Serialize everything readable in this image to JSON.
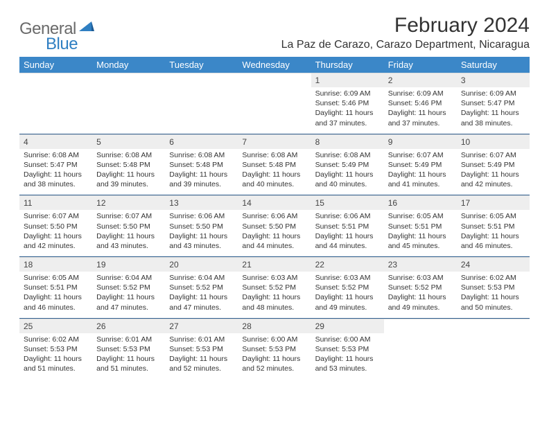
{
  "logo": {
    "text1": "General",
    "text2": "Blue"
  },
  "title": "February 2024",
  "location": "La Paz de Carazo, Carazo Department, Nicaragua",
  "colors": {
    "header_bg": "#3b87c8",
    "header_text": "#ffffff",
    "daynum_bg": "#eeeeee",
    "sep_line": "#2f5f8f",
    "logo_gray": "#6a6a6a",
    "logo_blue": "#2f7fc2"
  },
  "weekdays": [
    "Sunday",
    "Monday",
    "Tuesday",
    "Wednesday",
    "Thursday",
    "Friday",
    "Saturday"
  ],
  "weeks": [
    {
      "nums": [
        "",
        "",
        "",
        "",
        "1",
        "2",
        "3"
      ],
      "cells": [
        null,
        null,
        null,
        null,
        {
          "sunrise": "6:09 AM",
          "sunset": "5:46 PM",
          "dl_h": 11,
          "dl_m": 37
        },
        {
          "sunrise": "6:09 AM",
          "sunset": "5:46 PM",
          "dl_h": 11,
          "dl_m": 37
        },
        {
          "sunrise": "6:09 AM",
          "sunset": "5:47 PM",
          "dl_h": 11,
          "dl_m": 38
        }
      ]
    },
    {
      "nums": [
        "4",
        "5",
        "6",
        "7",
        "8",
        "9",
        "10"
      ],
      "cells": [
        {
          "sunrise": "6:08 AM",
          "sunset": "5:47 PM",
          "dl_h": 11,
          "dl_m": 38
        },
        {
          "sunrise": "6:08 AM",
          "sunset": "5:48 PM",
          "dl_h": 11,
          "dl_m": 39
        },
        {
          "sunrise": "6:08 AM",
          "sunset": "5:48 PM",
          "dl_h": 11,
          "dl_m": 39
        },
        {
          "sunrise": "6:08 AM",
          "sunset": "5:48 PM",
          "dl_h": 11,
          "dl_m": 40
        },
        {
          "sunrise": "6:08 AM",
          "sunset": "5:49 PM",
          "dl_h": 11,
          "dl_m": 40
        },
        {
          "sunrise": "6:07 AM",
          "sunset": "5:49 PM",
          "dl_h": 11,
          "dl_m": 41
        },
        {
          "sunrise": "6:07 AM",
          "sunset": "5:49 PM",
          "dl_h": 11,
          "dl_m": 42
        }
      ]
    },
    {
      "nums": [
        "11",
        "12",
        "13",
        "14",
        "15",
        "16",
        "17"
      ],
      "cells": [
        {
          "sunrise": "6:07 AM",
          "sunset": "5:50 PM",
          "dl_h": 11,
          "dl_m": 42
        },
        {
          "sunrise": "6:07 AM",
          "sunset": "5:50 PM",
          "dl_h": 11,
          "dl_m": 43
        },
        {
          "sunrise": "6:06 AM",
          "sunset": "5:50 PM",
          "dl_h": 11,
          "dl_m": 43
        },
        {
          "sunrise": "6:06 AM",
          "sunset": "5:50 PM",
          "dl_h": 11,
          "dl_m": 44
        },
        {
          "sunrise": "6:06 AM",
          "sunset": "5:51 PM",
          "dl_h": 11,
          "dl_m": 44
        },
        {
          "sunrise": "6:05 AM",
          "sunset": "5:51 PM",
          "dl_h": 11,
          "dl_m": 45
        },
        {
          "sunrise": "6:05 AM",
          "sunset": "5:51 PM",
          "dl_h": 11,
          "dl_m": 46
        }
      ]
    },
    {
      "nums": [
        "18",
        "19",
        "20",
        "21",
        "22",
        "23",
        "24"
      ],
      "cells": [
        {
          "sunrise": "6:05 AM",
          "sunset": "5:51 PM",
          "dl_h": 11,
          "dl_m": 46
        },
        {
          "sunrise": "6:04 AM",
          "sunset": "5:52 PM",
          "dl_h": 11,
          "dl_m": 47
        },
        {
          "sunrise": "6:04 AM",
          "sunset": "5:52 PM",
          "dl_h": 11,
          "dl_m": 47
        },
        {
          "sunrise": "6:03 AM",
          "sunset": "5:52 PM",
          "dl_h": 11,
          "dl_m": 48
        },
        {
          "sunrise": "6:03 AM",
          "sunset": "5:52 PM",
          "dl_h": 11,
          "dl_m": 49
        },
        {
          "sunrise": "6:03 AM",
          "sunset": "5:52 PM",
          "dl_h": 11,
          "dl_m": 49
        },
        {
          "sunrise": "6:02 AM",
          "sunset": "5:53 PM",
          "dl_h": 11,
          "dl_m": 50
        }
      ]
    },
    {
      "nums": [
        "25",
        "26",
        "27",
        "28",
        "29",
        "",
        ""
      ],
      "cells": [
        {
          "sunrise": "6:02 AM",
          "sunset": "5:53 PM",
          "dl_h": 11,
          "dl_m": 51
        },
        {
          "sunrise": "6:01 AM",
          "sunset": "5:53 PM",
          "dl_h": 11,
          "dl_m": 51
        },
        {
          "sunrise": "6:01 AM",
          "sunset": "5:53 PM",
          "dl_h": 11,
          "dl_m": 52
        },
        {
          "sunrise": "6:00 AM",
          "sunset": "5:53 PM",
          "dl_h": 11,
          "dl_m": 52
        },
        {
          "sunrise": "6:00 AM",
          "sunset": "5:53 PM",
          "dl_h": 11,
          "dl_m": 53
        },
        null,
        null
      ]
    }
  ]
}
